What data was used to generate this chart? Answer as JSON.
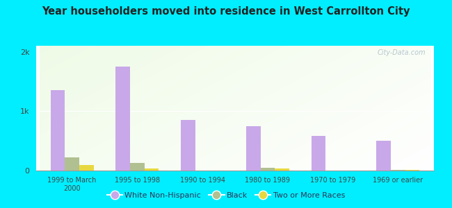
{
  "title": "Year householders moved into residence in West Carrollton City",
  "categories": [
    "1999 to March\n2000",
    "1995 to 1998",
    "1990 to 1994",
    "1980 to 1989",
    "1970 to 1979",
    "1969 or earlier"
  ],
  "white_non_hispanic": [
    1350,
    1750,
    850,
    750,
    580,
    500
  ],
  "black": [
    220,
    130,
    0,
    50,
    0,
    15
  ],
  "two_or_more_races": [
    90,
    40,
    0,
    40,
    0,
    10
  ],
  "bar_colors": {
    "white": "#c8a8e8",
    "black": "#b0c090",
    "two": "#e8d840"
  },
  "background_outer": "#00eeff",
  "yticks": [
    0,
    1000,
    2000
  ],
  "ylabels": [
    "0",
    "1k",
    "2k"
  ],
  "ylim": [
    0,
    2100
  ],
  "bar_width": 0.22,
  "legend_labels": [
    "White Non-Hispanic",
    "Black",
    "Two or More Races"
  ],
  "watermark": "City-Data.com"
}
